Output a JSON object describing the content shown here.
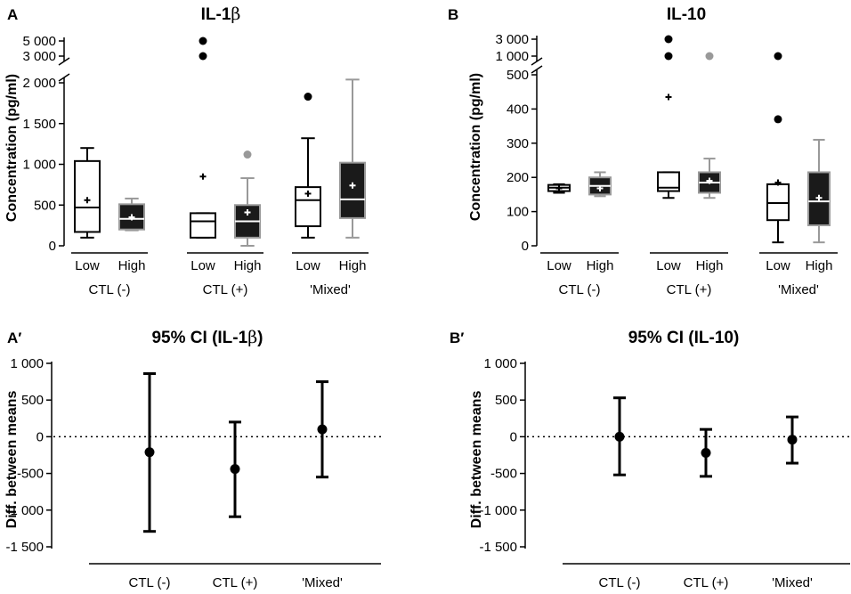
{
  "chart_data": [
    {
      "panel_label": "A",
      "type": "box",
      "title_main": "IL-1",
      "title_symbol": "β",
      "ylabel": "Concentration (pg/ml)",
      "break_upper": {
        "ticks": [
          3000,
          5000
        ],
        "tick_labels": [
          "3 000",
          "5 000"
        ]
      },
      "ylim": [
        0,
        2000
      ],
      "yticks": [
        0,
        500,
        1000,
        1500,
        2000
      ],
      "ytick_labels": [
        "0",
        "500",
        "1 000",
        "1 500",
        "2 000"
      ],
      "groups": [
        "CTL (-)",
        "CTL (+)",
        "'Mixed'"
      ],
      "subcategories": [
        "Low",
        "High"
      ],
      "boxes": [
        {
          "group": "CTL (-)",
          "sub": "Low",
          "fill": "#ffffff",
          "edge": "#000000",
          "min": 100,
          "q1": 170,
          "median": 470,
          "q3": 1040,
          "max": 1200,
          "mean": 560,
          "outliers_low": [],
          "outliers_high": []
        },
        {
          "group": "CTL (-)",
          "sub": "High",
          "fill": "#1a1a1a",
          "edge": "#999999",
          "min": 190,
          "q1": 200,
          "median": 330,
          "q3": 510,
          "max": 580,
          "mean": 350,
          "outliers_low": [],
          "outliers_high": []
        },
        {
          "group": "CTL (+)",
          "sub": "Low",
          "fill": "#ffffff",
          "edge": "#000000",
          "min": 100,
          "q1": 100,
          "median": 300,
          "q3": 400,
          "max": 400,
          "mean": 850,
          "outliers_low": [],
          "outliers_high": [
            3000,
            5000
          ]
        },
        {
          "group": "CTL (+)",
          "sub": "High",
          "fill": "#1a1a1a",
          "edge": "#999999",
          "min": 0,
          "q1": 100,
          "median": 300,
          "q3": 500,
          "max": 830,
          "mean": 410,
          "outliers_low": [
            1120
          ],
          "outliers_high": []
        },
        {
          "group": "'Mixed'",
          "sub": "Low",
          "fill": "#ffffff",
          "edge": "#000000",
          "min": 100,
          "q1": 240,
          "median": 560,
          "q3": 720,
          "max": 1320,
          "mean": 640,
          "outliers_low": [
            1830
          ],
          "outliers_high": []
        },
        {
          "group": "'Mixed'",
          "sub": "High",
          "fill": "#1a1a1a",
          "edge": "#999999",
          "min": 100,
          "q1": 340,
          "median": 570,
          "q3": 1020,
          "max": 2040,
          "mean": 740,
          "outliers_low": [],
          "outliers_high": []
        }
      ]
    },
    {
      "panel_label": "B",
      "type": "box",
      "title_main": "IL-10",
      "title_symbol": "",
      "ylabel": "Concentration (pg/ml)",
      "break_upper": {
        "ticks": [
          1000,
          3000
        ],
        "tick_labels": [
          "1 000",
          "3 000"
        ]
      },
      "ylim": [
        0,
        500
      ],
      "yticks": [
        0,
        100,
        200,
        300,
        400,
        500
      ],
      "ytick_labels": [
        "0",
        "100",
        "200",
        "300",
        "400",
        "500"
      ],
      "groups": [
        "CTL (-)",
        "CTL (+)",
        "'Mixed'"
      ],
      "subcategories": [
        "Low",
        "High"
      ],
      "boxes": [
        {
          "group": "CTL (-)",
          "sub": "Low",
          "fill": "#ffffff",
          "edge": "#000000",
          "min": 155,
          "q1": 160,
          "median": 170,
          "q3": 178,
          "max": 180,
          "mean": 168,
          "outliers_low": [],
          "outliers_high": []
        },
        {
          "group": "CTL (-)",
          "sub": "High",
          "fill": "#1a1a1a",
          "edge": "#999999",
          "min": 145,
          "q1": 150,
          "median": 175,
          "q3": 200,
          "max": 215,
          "mean": 168,
          "outliers_low": [],
          "outliers_high": []
        },
        {
          "group": "CTL (+)",
          "sub": "Low",
          "fill": "#ffffff",
          "edge": "#000000",
          "min": 140,
          "q1": 160,
          "median": 170,
          "q3": 215,
          "max": 215,
          "mean": 435,
          "outliers_low": [],
          "outliers_high": [
            1000,
            3000
          ]
        },
        {
          "group": "CTL (+)",
          "sub": "High",
          "fill": "#1a1a1a",
          "edge": "#999999",
          "min": 140,
          "q1": 155,
          "median": 185,
          "q3": 215,
          "max": 255,
          "mean": 190,
          "outliers_low": [],
          "outliers_high": [
            1000
          ]
        },
        {
          "group": "'Mixed'",
          "sub": "Low",
          "fill": "#ffffff",
          "edge": "#000000",
          "min": 10,
          "q1": 75,
          "median": 125,
          "q3": 180,
          "max": 180,
          "mean": 185,
          "outliers_low": [
            370
          ],
          "outliers_high": [
            1000
          ]
        },
        {
          "group": "'Mixed'",
          "sub": "High",
          "fill": "#1a1a1a",
          "edge": "#999999",
          "min": 10,
          "q1": 60,
          "median": 130,
          "q3": 215,
          "max": 310,
          "mean": 140,
          "outliers_low": [],
          "outliers_high": []
        }
      ]
    },
    {
      "panel_label": "A′",
      "type": "errorbar",
      "title_main": "95% CI (IL-1",
      "title_symbol": "β",
      "title_end": ")",
      "ylabel": "Diff. between means",
      "ylim": [
        -1500,
        1000
      ],
      "yticks": [
        -1500,
        -1000,
        -500,
        0,
        500,
        1000
      ],
      "ytick_labels": [
        "-1 500",
        "-1 000",
        "-500",
        "0",
        "500",
        "1 000"
      ],
      "categories": [
        "CTL (-)",
        "CTL (+)",
        "'Mixed'"
      ],
      "points": [
        {
          "category": "CTL (-)",
          "mean": -210,
          "lower": -1290,
          "upper": 860
        },
        {
          "category": "CTL (+)",
          "mean": -440,
          "lower": -1090,
          "upper": 200
        },
        {
          "category": "'Mixed'",
          "mean": 100,
          "lower": -550,
          "upper": 750
        }
      ],
      "reference_line": 0
    },
    {
      "panel_label": "B′",
      "type": "errorbar",
      "title_main": "95% CI (IL-10)",
      "title_symbol": "",
      "title_end": "",
      "ylabel": "Diff. between means",
      "ylim": [
        -1500,
        1000
      ],
      "yticks": [
        -1500,
        -1000,
        -500,
        0,
        500,
        1000
      ],
      "ytick_labels": [
        "-1 500",
        "-1 000",
        "-500",
        "0",
        "500",
        "1 000"
      ],
      "categories": [
        "CTL (-)",
        "CTL (+)",
        "'Mixed'"
      ],
      "points": [
        {
          "category": "CTL (-)",
          "mean": 0,
          "lower": -520,
          "upper": 530
        },
        {
          "category": "CTL (+)",
          "mean": -220,
          "lower": -540,
          "upper": 100
        },
        {
          "category": "'Mixed'",
          "mean": -40,
          "lower": -360,
          "upper": 270
        }
      ],
      "reference_line": 0
    }
  ]
}
